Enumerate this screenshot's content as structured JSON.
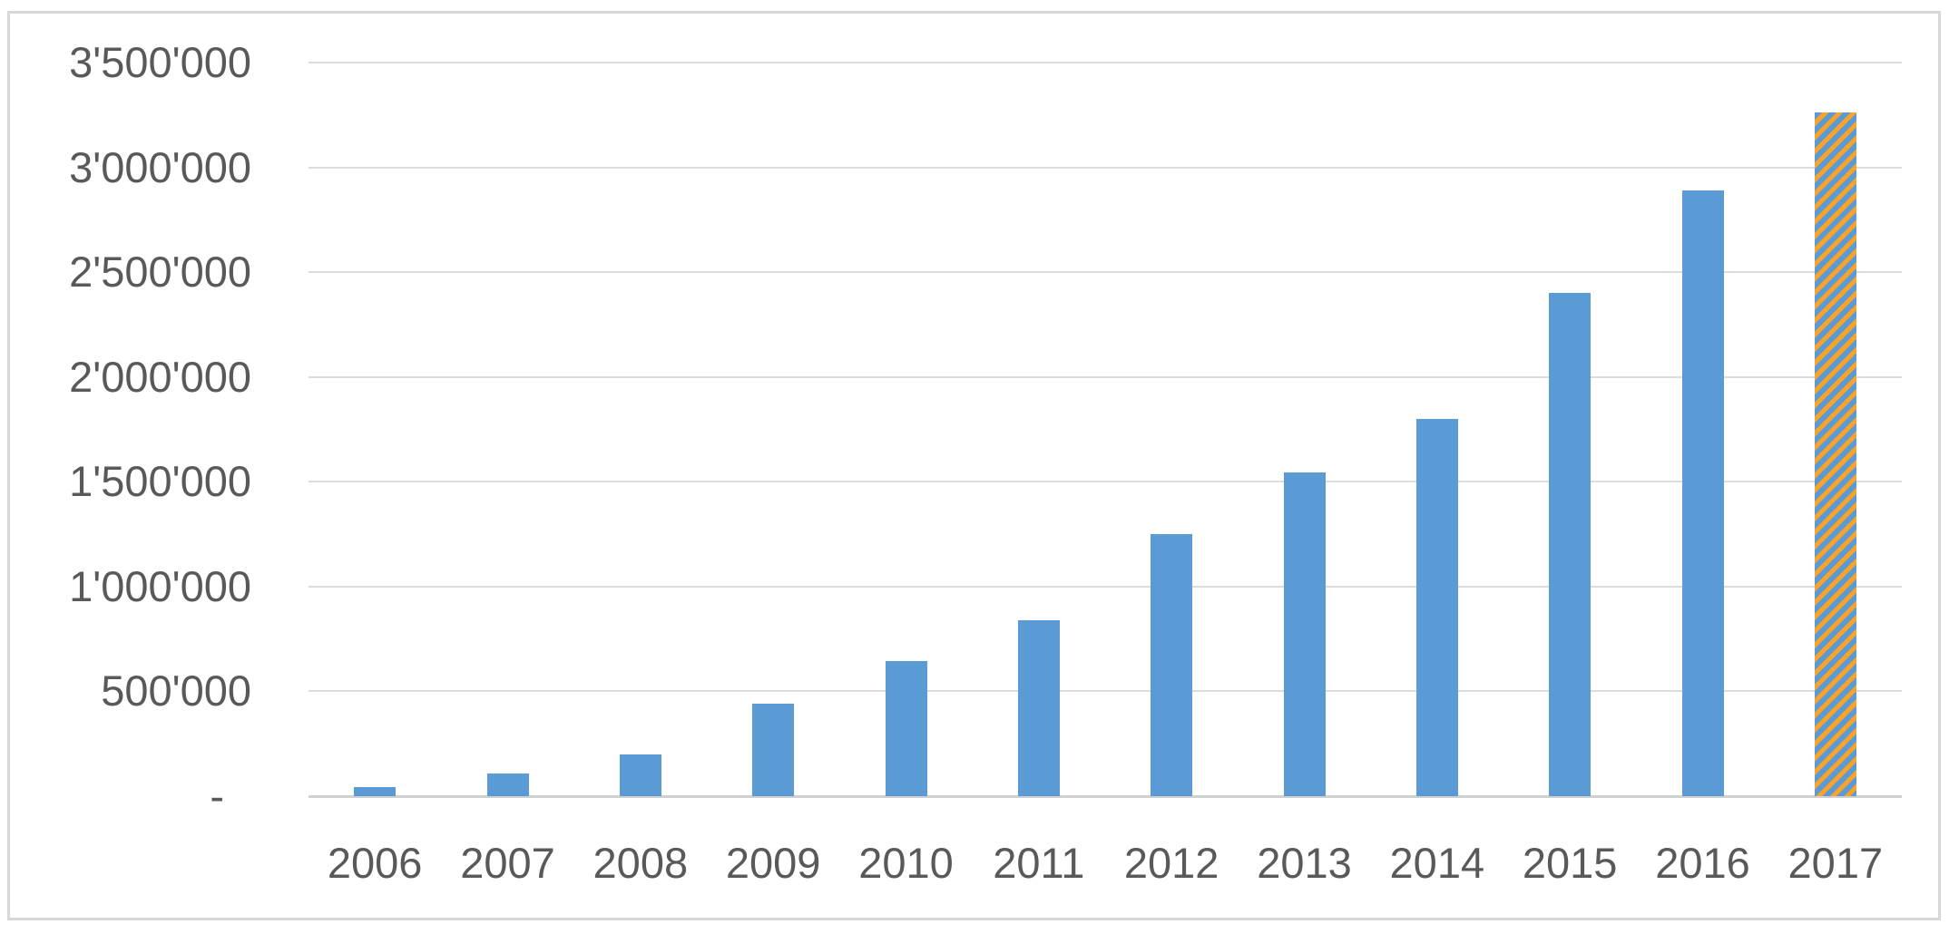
{
  "chart_data": {
    "type": "bar",
    "title": "",
    "xlabel": "",
    "ylabel": "",
    "categories": [
      "2006",
      "2007",
      "2008",
      "2009",
      "2010",
      "2011",
      "2012",
      "2013",
      "2014",
      "2015",
      "2016",
      "2017"
    ],
    "values": [
      45000,
      110000,
      200000,
      440000,
      645000,
      840000,
      1250000,
      1545000,
      1800000,
      2400000,
      2890000,
      3260000
    ],
    "ylim": [
      0,
      3500000
    ],
    "grid": "horizontal",
    "legend": "none",
    "y_ticks": [
      {
        "label": "3'500'000",
        "value": 3500000
      },
      {
        "label": "3'000'000",
        "value": 3000000
      },
      {
        "label": "2'500'000",
        "value": 2500000
      },
      {
        "label": "2'000'000",
        "value": 2000000
      },
      {
        "label": "1'500'000",
        "value": 1500000
      },
      {
        "label": "1'000'000",
        "value": 1000000
      },
      {
        "label": "500'000",
        "value": 500000
      },
      {
        "label": "-",
        "value": 0
      }
    ],
    "highlight": {
      "category": "2017",
      "style": "diagonal-stripes",
      "stripe_direction": "bottom-left-to-top-right"
    },
    "colors": {
      "bar_fill": "#5B9BD5",
      "highlight_stripe": "#FCA226",
      "gridline": "#DCDCDC",
      "axis_line": "#D0D0D0",
      "tick_text": "#595959",
      "frame_border": "#D8D8D8",
      "background": "#FFFFFF"
    }
  }
}
